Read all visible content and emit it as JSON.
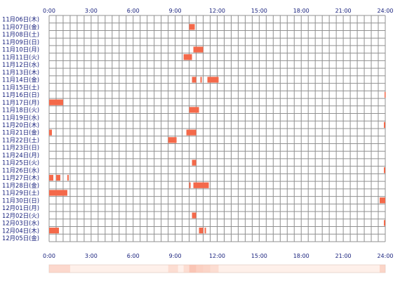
{
  "chart_data": {
    "type": "heatmap",
    "title": "",
    "xlabel": "",
    "ylabel": "",
    "x_unit": "hour of day",
    "xlim": [
      0,
      24
    ],
    "x_ticks": [
      "0:00",
      "3:00",
      "6:00",
      "9:00",
      "12:00",
      "15:00",
      "18:00",
      "21:00",
      "24:00"
    ],
    "grid": true,
    "colors": {
      "bar": "#f4694a",
      "summary_strip": "#f9c0ae",
      "grid": "#909090",
      "labels": "#1a237e"
    },
    "rows": [
      {
        "label": "11月06日(木)",
        "blocks": []
      },
      {
        "label": "11月07日(金)",
        "blocks": [
          [
            10.0,
            10.4
          ]
        ]
      },
      {
        "label": "11月08日(土)",
        "blocks": []
      },
      {
        "label": "11月09日(日)",
        "blocks": []
      },
      {
        "label": "11月10日(月)",
        "blocks": [
          [
            10.3,
            11.0
          ]
        ]
      },
      {
        "label": "11月11日(火)",
        "blocks": [
          [
            9.6,
            10.2
          ]
        ]
      },
      {
        "label": "11月12日(水)",
        "blocks": []
      },
      {
        "label": "11月13日(木)",
        "blocks": []
      },
      {
        "label": "11月14日(金)",
        "blocks": [
          [
            10.2,
            10.5
          ],
          [
            10.8,
            10.9
          ],
          [
            11.3,
            12.1
          ]
        ]
      },
      {
        "label": "11月15日(土)",
        "blocks": []
      },
      {
        "label": "11月16日(日)",
        "blocks": [
          [
            23.95,
            24.0
          ]
        ]
      },
      {
        "label": "11月17日(月)",
        "blocks": [
          [
            0.0,
            1.0
          ]
        ]
      },
      {
        "label": "11月18日(火)",
        "blocks": [
          [
            10.0,
            10.7
          ]
        ]
      },
      {
        "label": "11月19日(水)",
        "blocks": []
      },
      {
        "label": "11月20日(木)",
        "blocks": [
          [
            23.9,
            24.0
          ]
        ]
      },
      {
        "label": "11月21日(金)",
        "blocks": [
          [
            0.0,
            0.2
          ],
          [
            9.8,
            10.5
          ]
        ]
      },
      {
        "label": "11月22日(土)",
        "blocks": [
          [
            8.5,
            9.1
          ]
        ]
      },
      {
        "label": "11月23日(日)",
        "blocks": []
      },
      {
        "label": "11月24日(月)",
        "blocks": []
      },
      {
        "label": "11月25日(火)",
        "blocks": [
          [
            10.2,
            10.5
          ]
        ]
      },
      {
        "label": "11月26日(水)",
        "blocks": [
          [
            23.9,
            24.0
          ]
        ]
      },
      {
        "label": "11月27日(木)",
        "blocks": [
          [
            0.0,
            0.3
          ],
          [
            0.5,
            0.8
          ],
          [
            1.3,
            1.4
          ]
        ]
      },
      {
        "label": "11月28日(金)",
        "blocks": [
          [
            10.0,
            10.1
          ],
          [
            10.3,
            11.0
          ],
          [
            11.0,
            11.4
          ]
        ]
      },
      {
        "label": "11月29日(土)",
        "blocks": [
          [
            0.0,
            1.3
          ]
        ]
      },
      {
        "label": "11月30日(日)",
        "blocks": [
          [
            23.6,
            24.0
          ]
        ]
      },
      {
        "label": "12月01日(月)",
        "blocks": []
      },
      {
        "label": "12月02日(火)",
        "blocks": [
          [
            10.2,
            10.5
          ]
        ]
      },
      {
        "label": "12月03日(水)",
        "blocks": [
          [
            23.9,
            24.0
          ]
        ]
      },
      {
        "label": "12月04日(木)",
        "blocks": [
          [
            0.0,
            0.7
          ],
          [
            10.7,
            11.0
          ],
          [
            11.1,
            11.2
          ]
        ]
      },
      {
        "label": "12月05日(金)",
        "blocks": []
      }
    ],
    "summary_strip": [
      [
        0.0,
        1.5,
        0.55
      ],
      [
        1.5,
        8.5,
        0.1
      ],
      [
        8.5,
        9.2,
        0.45
      ],
      [
        9.2,
        9.6,
        0.1
      ],
      [
        9.6,
        10.0,
        0.45
      ],
      [
        10.0,
        10.5,
        0.9
      ],
      [
        10.5,
        11.0,
        0.7
      ],
      [
        11.0,
        11.5,
        0.6
      ],
      [
        11.5,
        12.1,
        0.45
      ],
      [
        12.1,
        23.6,
        0.1
      ],
      [
        23.6,
        24.0,
        0.6
      ]
    ]
  }
}
